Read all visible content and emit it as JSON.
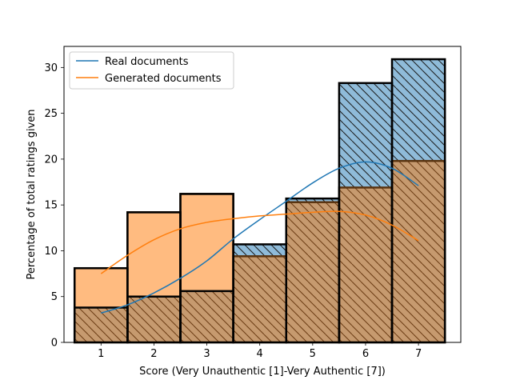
{
  "chart_data": {
    "type": "bar",
    "title": "",
    "xlabel": "Score (Very Unauthentic [1]-Very Authentic [7])",
    "ylabel": "Percentage of total ratings given",
    "categories": [
      1,
      2,
      3,
      4,
      5,
      6,
      7
    ],
    "xlim": [
      0.3,
      7.8
    ],
    "ylim": [
      0,
      32.3
    ],
    "yticks": [
      0,
      5,
      10,
      15,
      20,
      25,
      30
    ],
    "grid": false,
    "legend_position": "top-left",
    "series": [
      {
        "name": "Real documents",
        "color": "#1f77b4",
        "bar_fill": "#8fbbd9",
        "hatch": "diagonal",
        "values": [
          3.8,
          5.0,
          5.6,
          10.7,
          15.7,
          28.3,
          30.9
        ],
        "kde": [
          [
            1.0,
            3.2
          ],
          [
            1.5,
            4.1
          ],
          [
            2.0,
            5.4
          ],
          [
            2.5,
            7.0
          ],
          [
            3.0,
            8.9
          ],
          [
            3.5,
            11.3
          ],
          [
            4.0,
            13.4
          ],
          [
            4.5,
            15.4
          ],
          [
            5.0,
            17.4
          ],
          [
            5.5,
            19.0
          ],
          [
            6.0,
            19.7
          ],
          [
            6.5,
            19.0
          ],
          [
            7.0,
            17.1
          ]
        ]
      },
      {
        "name": "Generated documents",
        "color": "#ff7f0e",
        "bar_fill": "#ffbb80",
        "hatch": "none",
        "values": [
          8.1,
          14.2,
          16.2,
          9.4,
          15.3,
          16.9,
          19.8
        ],
        "kde": [
          [
            1.0,
            7.5
          ],
          [
            1.5,
            9.5
          ],
          [
            2.0,
            11.2
          ],
          [
            2.5,
            12.4
          ],
          [
            3.0,
            13.1
          ],
          [
            3.5,
            13.5
          ],
          [
            4.0,
            13.8
          ],
          [
            4.5,
            14.0
          ],
          [
            5.0,
            14.2
          ],
          [
            5.5,
            14.3
          ],
          [
            6.0,
            13.9
          ],
          [
            6.5,
            12.8
          ],
          [
            7.0,
            11.1
          ]
        ]
      }
    ],
    "overlap_fill": "#c69a6f"
  }
}
